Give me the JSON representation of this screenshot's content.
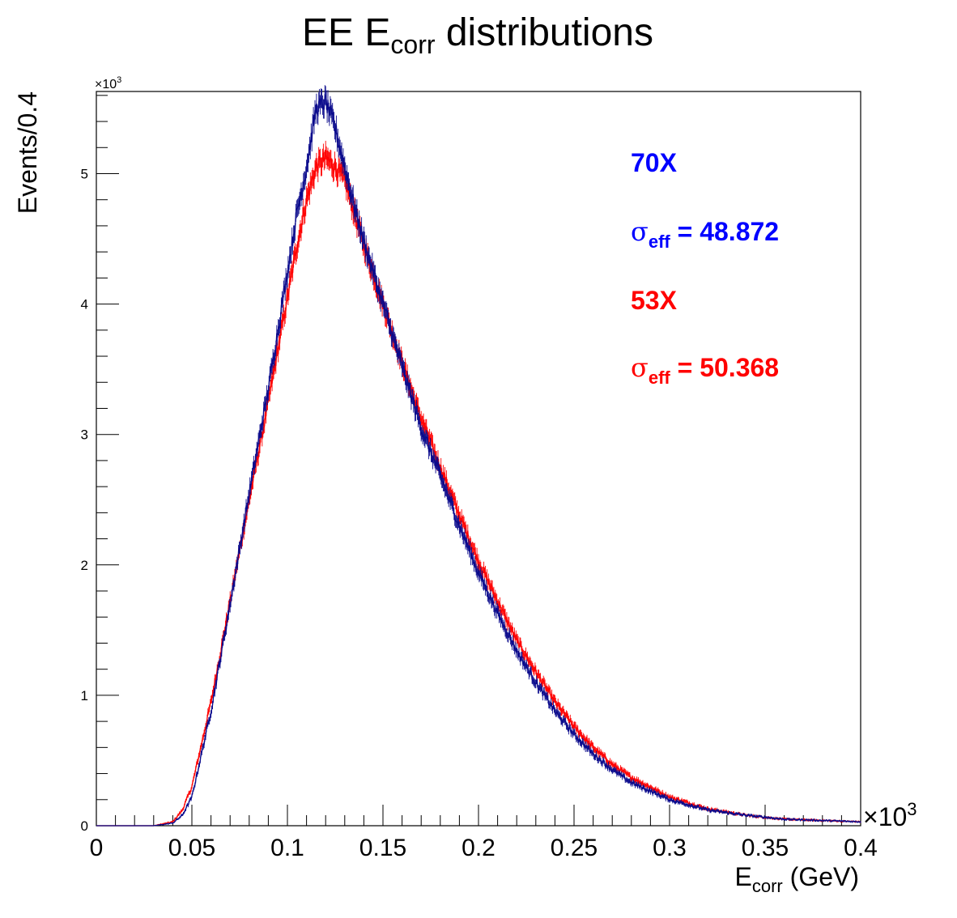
{
  "chart_data": {
    "type": "line",
    "title": "EE E",
    "title_sub": "corr",
    "title_rest": " distributions",
    "ylabel": "Events/0.4",
    "xlabel": "E",
    "xlabel_sub": "corr",
    "xlabel_rest": " (GeV)",
    "x_multiplier": "×10",
    "x_multiplier_exp": "3",
    "y_multiplier": "×10",
    "y_multiplier_exp": "3",
    "xlim": [
      0,
      0.4
    ],
    "ylim": [
      0,
      5.63
    ],
    "x_ticks": [
      "0",
      "0.05",
      "0.1",
      "0.15",
      "0.2",
      "0.25",
      "0.3",
      "0.35",
      "0.4"
    ],
    "y_ticks": [
      "0",
      "1",
      "2",
      "3",
      "4",
      "5"
    ],
    "grid": false,
    "legend": "top-right",
    "series": [
      {
        "name": "70X",
        "color": "#0a0a8c",
        "label_color": "#0000ff",
        "sigma_label": "σ",
        "sigma_sub": "eff",
        "sigma_value": " = 48.872",
        "x": [
          0.0,
          0.03,
          0.04,
          0.045,
          0.05,
          0.06,
          0.07,
          0.08,
          0.09,
          0.1,
          0.105,
          0.11,
          0.115,
          0.12,
          0.125,
          0.13,
          0.135,
          0.14,
          0.15,
          0.16,
          0.17,
          0.18,
          0.19,
          0.2,
          0.21,
          0.22,
          0.23,
          0.24,
          0.25,
          0.26,
          0.27,
          0.28,
          0.3,
          0.32,
          0.34,
          0.36,
          0.38,
          0.4
        ],
        "y": [
          0.0,
          0.0,
          0.02,
          0.08,
          0.22,
          0.88,
          1.7,
          2.55,
          3.35,
          4.25,
          4.7,
          5.05,
          5.5,
          5.55,
          5.35,
          5.05,
          4.75,
          4.48,
          4.0,
          3.52,
          3.05,
          2.68,
          2.3,
          1.94,
          1.63,
          1.34,
          1.1,
          0.88,
          0.7,
          0.55,
          0.43,
          0.33,
          0.2,
          0.12,
          0.08,
          0.05,
          0.04,
          0.03
        ]
      },
      {
        "name": "53X",
        "color": "#ff0000",
        "label_color": "#ff0000",
        "sigma_label": "σ",
        "sigma_sub": "eff",
        "sigma_value": " = 50.368",
        "x": [
          0.0,
          0.03,
          0.04,
          0.045,
          0.05,
          0.06,
          0.07,
          0.08,
          0.09,
          0.1,
          0.105,
          0.11,
          0.115,
          0.12,
          0.125,
          0.13,
          0.135,
          0.14,
          0.15,
          0.16,
          0.17,
          0.18,
          0.19,
          0.2,
          0.21,
          0.22,
          0.23,
          0.24,
          0.25,
          0.26,
          0.27,
          0.28,
          0.3,
          0.32,
          0.34,
          0.36,
          0.38,
          0.4
        ],
        "y": [
          0.0,
          0.0,
          0.03,
          0.12,
          0.3,
          0.95,
          1.72,
          2.5,
          3.25,
          4.05,
          4.45,
          4.8,
          5.05,
          5.12,
          5.05,
          4.95,
          4.7,
          4.45,
          4.0,
          3.55,
          3.12,
          2.75,
          2.38,
          2.03,
          1.72,
          1.42,
          1.18,
          0.95,
          0.76,
          0.6,
          0.47,
          0.37,
          0.22,
          0.13,
          0.08,
          0.05,
          0.04,
          0.03
        ]
      }
    ]
  }
}
